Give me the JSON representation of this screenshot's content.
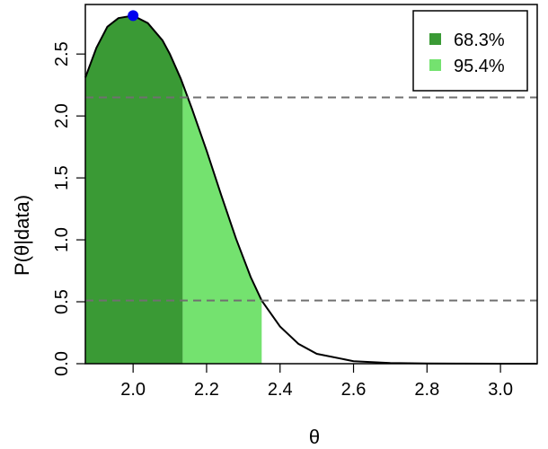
{
  "chart_data": {
    "type": "area",
    "xlabel": "θ",
    "ylabel": "P(θ|data)",
    "xlim": [
      1.87,
      3.1
    ],
    "ylim": [
      0.0,
      2.9
    ],
    "x_ticks": [
      "2.0",
      "2.2",
      "2.4",
      "2.6",
      "2.8",
      "3.0"
    ],
    "y_ticks": [
      "0.0",
      "0.5",
      "1.0",
      "1.5",
      "2.0",
      "2.5"
    ],
    "grid": false,
    "legend_position": "top-right",
    "curve": {
      "x": [
        1.87,
        1.9,
        1.93,
        1.96,
        2.0,
        2.04,
        2.08,
        2.1,
        2.13,
        2.16,
        2.2,
        2.24,
        2.28,
        2.32,
        2.35,
        2.4,
        2.45,
        2.5,
        2.6,
        2.7,
        2.8,
        2.9,
        3.0,
        3.1
      ],
      "y": [
        2.31,
        2.55,
        2.72,
        2.79,
        2.81,
        2.75,
        2.61,
        2.5,
        2.3,
        2.06,
        1.72,
        1.36,
        1.01,
        0.7,
        0.51,
        0.3,
        0.16,
        0.08,
        0.02,
        0.005,
        0.002,
        0.001,
        0.0,
        0.0
      ]
    },
    "mode": {
      "x": 2.0,
      "y": 2.81
    },
    "intervals": [
      {
        "label": "68.3%",
        "x_start": 1.87,
        "x_end": 2.135,
        "level": 2.15,
        "color": "#3a9a35"
      },
      {
        "label": "95.4%",
        "x_start": 2.135,
        "x_end": 2.35,
        "level": 0.51,
        "color": "#74e26f"
      }
    ],
    "colors": {
      "curve": "#000000",
      "mode_point": "#0000ee",
      "dashed_line": "#707070"
    }
  }
}
